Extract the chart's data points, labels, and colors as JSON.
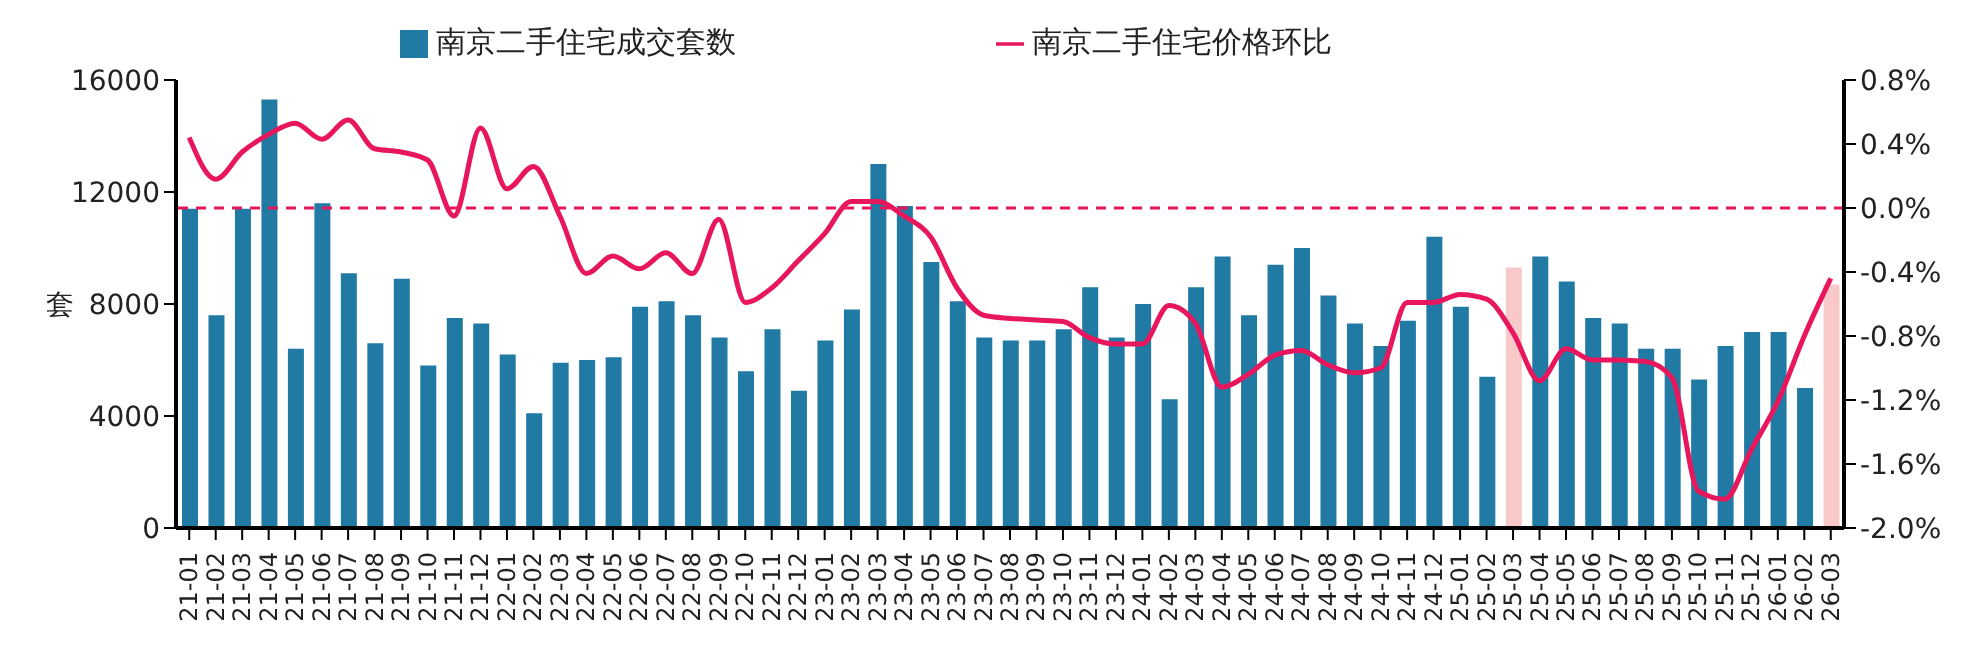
{
  "chart_data": {
    "type": "bar",
    "ylabel": "套",
    "categories": [
      "21-01",
      "21-02",
      "21-03",
      "21-04",
      "21-05",
      "21-06",
      "21-07",
      "21-08",
      "21-09",
      "21-10",
      "21-11",
      "21-12",
      "22-01",
      "22-02",
      "22-03",
      "22-04",
      "22-05",
      "22-06",
      "22-07",
      "22-08",
      "22-09",
      "22-10",
      "22-11",
      "22-12",
      "23-01",
      "23-02",
      "23-03",
      "23-04",
      "23-05",
      "23-06",
      "23-07",
      "23-08",
      "23-09",
      "23-10",
      "23-11",
      "23-12",
      "24-01",
      "24-02",
      "24-03",
      "24-04",
      "24-05",
      "24-06",
      "24-07",
      "24-08",
      "24-09",
      "24-10",
      "24-11",
      "24-12",
      "25-01",
      "25-02",
      "25-03",
      "25-04",
      "25-05",
      "25-06",
      "25-07",
      "25-08",
      "25-09",
      "25-10",
      "25-11",
      "25-12",
      "26-01",
      "26-02",
      "26-03"
    ],
    "series": [
      {
        "name": "南京二手住宅成交套数",
        "color": "#217aa3",
        "colors": [
          "#217aa3",
          "#217aa3",
          "#217aa3",
          "#217aa3",
          "#217aa3",
          "#217aa3",
          "#217aa3",
          "#217aa3",
          "#217aa3",
          "#217aa3",
          "#217aa3",
          "#217aa3",
          "#217aa3",
          "#217aa3",
          "#217aa3",
          "#217aa3",
          "#217aa3",
          "#217aa3",
          "#217aa3",
          "#217aa3",
          "#217aa3",
          "#217aa3",
          "#217aa3",
          "#217aa3",
          "#217aa3",
          "#217aa3",
          "#217aa3",
          "#217aa3",
          "#217aa3",
          "#217aa3",
          "#217aa3",
          "#217aa3",
          "#217aa3",
          "#217aa3",
          "#217aa3",
          "#217aa3",
          "#217aa3",
          "#217aa3",
          "#217aa3",
          "#217aa3",
          "#217aa3",
          "#217aa3",
          "#217aa3",
          "#217aa3",
          "#217aa3",
          "#217aa3",
          "#217aa3",
          "#217aa3",
          "#217aa3",
          "#217aa3",
          "#f9c9c9",
          "#217aa3",
          "#217aa3",
          "#217aa3",
          "#217aa3",
          "#217aa3",
          "#217aa3",
          "#217aa3",
          "#217aa3",
          "#217aa3",
          "#217aa3",
          "#217aa3",
          "#f9c9c9"
        ],
        "values": [
          11400,
          7600,
          11400,
          15300,
          6400,
          11600,
          9100,
          6600,
          8900,
          5800,
          7500,
          7300,
          6200,
          4100,
          5900,
          6000,
          6100,
          7900,
          8100,
          7600,
          6800,
          5600,
          7100,
          4900,
          6700,
          7800,
          13000,
          11500,
          9500,
          8100,
          6800,
          6700,
          6700,
          7100,
          8600,
          6800,
          8000,
          4600,
          8600,
          9700,
          7600,
          9400,
          10000,
          8300,
          7300,
          6500,
          7400,
          10400,
          7900,
          5400,
          9300,
          9700,
          8800,
          7500,
          7300,
          6400,
          6400,
          5300,
          6500,
          7000,
          7000,
          5000,
          8700
        ]
      },
      {
        "name": "南京二手住宅价格环比",
        "type": "line",
        "axis": "y2",
        "color": "#e8175d",
        "values": [
          0.44,
          0.18,
          0.35,
          0.46,
          0.53,
          0.43,
          0.55,
          0.37,
          0.35,
          0.3,
          -0.05,
          0.5,
          0.12,
          0.26,
          -0.05,
          -0.41,
          -0.3,
          -0.38,
          -0.28,
          -0.41,
          -0.07,
          -0.59,
          -0.5,
          -0.33,
          -0.16,
          0.04,
          0.04,
          -0.05,
          -0.18,
          -0.5,
          -0.67,
          -0.69,
          -0.7,
          -0.71,
          -0.81,
          -0.85,
          -0.85,
          -0.61,
          -0.72,
          -1.12,
          -1.04,
          -0.92,
          -0.89,
          -0.98,
          -1.03,
          -1.0,
          -0.59,
          -0.59,
          -0.54,
          -0.57,
          -0.78,
          -1.08,
          -0.88,
          -0.95,
          -0.95,
          -0.96,
          -1.06,
          -1.77,
          -1.82,
          -1.51,
          -1.21,
          -0.8,
          -0.44
        ]
      }
    ],
    "ylim": [
      0,
      16000
    ],
    "yticks": [
      0,
      4000,
      8000,
      12000,
      16000
    ],
    "y2lim": [
      -2.0,
      0.8
    ],
    "y2ticks": [
      {
        "value": -2.0,
        "label": "-2.0%"
      },
      {
        "value": -1.6,
        "label": "-1.6%"
      },
      {
        "value": -1.2,
        "label": "-1.2%"
      },
      {
        "value": -0.8,
        "label": "-0.8%"
      },
      {
        "value": -0.4,
        "label": "-0.4%"
      },
      {
        "value": 0,
        "label": "0.0%"
      },
      {
        "value": 0.4,
        "label": "0.4%"
      },
      {
        "value": 0.8,
        "label": "0.8%"
      }
    ],
    "ref_lines": [
      {
        "axis": "y2",
        "value": 0,
        "color": "#e8175d",
        "line_style": "dashed"
      }
    ],
    "legend": "top",
    "grid": false,
    "marker": "none",
    "line_style": "solid"
  }
}
